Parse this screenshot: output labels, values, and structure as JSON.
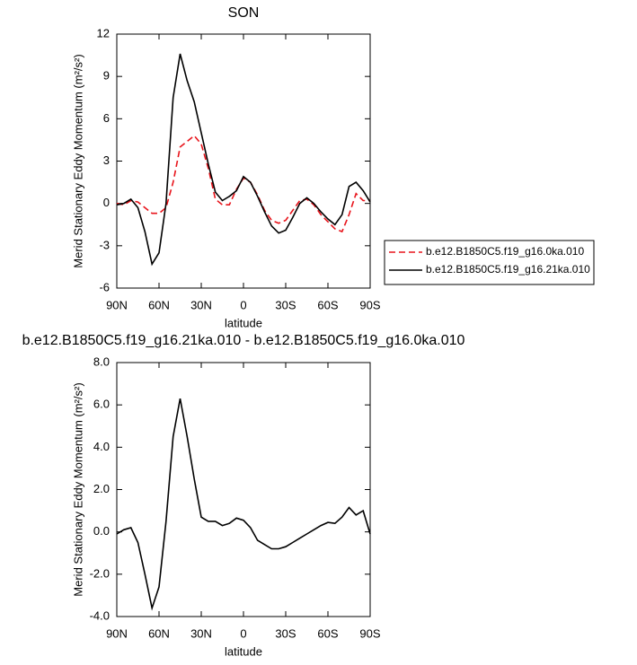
{
  "chart_data": [
    {
      "type": "line",
      "title": "SON",
      "x_label": "latitude",
      "y_label": "Merid Stationary Eddy Momentum (m²/s²)",
      "x": [
        90,
        85,
        80,
        75,
        70,
        65,
        60,
        55,
        50,
        45,
        40,
        35,
        30,
        25,
        20,
        15,
        10,
        5,
        0,
        -5,
        -10,
        -15,
        -20,
        -25,
        -30,
        -35,
        -40,
        -45,
        -50,
        -55,
        -60,
        -65,
        -70,
        -75,
        -80,
        -85,
        -90
      ],
      "series": [
        {
          "name": "b.e12.B1850C5.f19_g16.0ka.010",
          "color": "#e8141b",
          "line_style": "dashed",
          "values": [
            0,
            -0.1,
            0.2,
            0.1,
            -0.3,
            -0.7,
            -0.7,
            -0.3,
            1.5,
            4.0,
            4.4,
            4.8,
            4.2,
            2.5,
            0.3,
            -0.1,
            -0.1,
            1.0,
            1.8,
            1.5,
            0.6,
            -0.5,
            -1.2,
            -1.4,
            -1.2,
            -0.5,
            0.2,
            0.3,
            -0.1,
            -0.8,
            -1.3,
            -1.8,
            -2.0,
            -0.8,
            0.7,
            0.2,
            0.2
          ]
        },
        {
          "name": "b.e12.B1850C5.f19_g16.21ka.010",
          "color": "#000000",
          "line_style": "solid",
          "values": [
            -0.1,
            0,
            0.3,
            -0.3,
            -2.0,
            -4.3,
            -3.5,
            0,
            7.5,
            10.6,
            8.7,
            7.2,
            5.0,
            2.8,
            0.8,
            0.2,
            0.5,
            0.9,
            1.9,
            1.5,
            0.5,
            -0.6,
            -1.6,
            -2.1,
            -1.9,
            -1.0,
            0,
            0.4,
            0,
            -0.6,
            -1.1,
            -1.5,
            -0.8,
            1.2,
            1.5,
            0.9,
            0.1
          ]
        }
      ],
      "xlim": [
        90,
        -90
      ],
      "xticks": [
        {
          "value": 90,
          "label": "90N"
        },
        {
          "value": 60,
          "label": "60N"
        },
        {
          "value": 30,
          "label": "30N"
        },
        0,
        {
          "value": -30,
          "label": "30S"
        },
        {
          "value": -60,
          "label": "60S"
        },
        {
          "value": -90,
          "label": "90S"
        }
      ],
      "ylim": [
        -6,
        12
      ],
      "yticks": [
        -6,
        -3,
        0,
        3,
        6,
        9,
        12
      ],
      "legend": "right"
    },
    {
      "type": "line",
      "title": "b.e12.B1850C5.f19_g16.21ka.010 - b.e12.B1850C5.f19_g16.0ka.010",
      "x_label": "latitude",
      "y_label": "Merid Stationary Eddy Momentum (m²/s²)",
      "x": [
        90,
        85,
        80,
        75,
        70,
        65,
        60,
        55,
        50,
        45,
        40,
        35,
        30,
        25,
        20,
        15,
        10,
        5,
        0,
        -5,
        -10,
        -15,
        -20,
        -25,
        -30,
        -35,
        -40,
        -45,
        -50,
        -55,
        -60,
        -65,
        -70,
        -75,
        -80,
        -85,
        -90
      ],
      "series": [
        {
          "color": "#000000",
          "line_style": "solid",
          "values": [
            -0.1,
            0.1,
            0.2,
            -0.5,
            -2.0,
            -3.6,
            -2.6,
            0.5,
            4.5,
            6.3,
            4.5,
            2.5,
            0.7,
            0.5,
            0.5,
            0.3,
            0.4,
            0.65,
            0.55,
            0.2,
            -0.4,
            -0.6,
            -0.8,
            -0.8,
            -0.7,
            -0.5,
            -0.3,
            -0.1,
            0.1,
            0.3,
            0.45,
            0.4,
            0.7,
            1.15,
            0.8,
            1.0,
            -0.1
          ]
        }
      ],
      "xlim": [
        90,
        -90
      ],
      "xticks": [
        {
          "value": 90,
          "label": "90N"
        },
        {
          "value": 60,
          "label": "60N"
        },
        {
          "value": 30,
          "label": "30N"
        },
        0,
        {
          "value": -30,
          "label": "30S"
        },
        {
          "value": -60,
          "label": "60S"
        },
        {
          "value": -90,
          "label": "90S"
        }
      ],
      "ylim": [
        -4,
        8
      ],
      "yticks": [
        {
          "value": -4,
          "label": "-4.0"
        },
        {
          "value": -2,
          "label": "-2.0"
        },
        {
          "value": 0,
          "label": "0.0"
        },
        {
          "value": 2,
          "label": "2.0"
        },
        {
          "value": 4,
          "label": "4.0"
        },
        {
          "value": 6,
          "label": "6.0"
        },
        {
          "value": 8,
          "label": "8.0"
        }
      ]
    }
  ]
}
